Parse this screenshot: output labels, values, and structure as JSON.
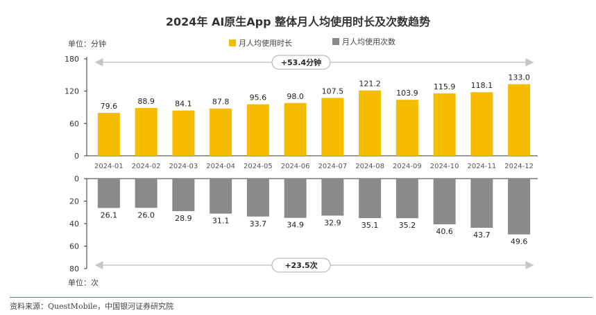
{
  "title": "2024年 AI原生App 整体月人均使用时长及次数趋势",
  "source": "资料来源：QuestMobile，中国银河证券研究院",
  "colors": {
    "duration": "#F5BC00",
    "count": "#8A8A8A",
    "axis": "#333333",
    "arrow": "#c7c7c7"
  },
  "chart_data": {
    "type": "bar",
    "categories": [
      "2024-01",
      "2024-02",
      "2024-03",
      "2024-04",
      "2024-05",
      "2024-06",
      "2024-07",
      "2024-08",
      "2024-09",
      "2024-10",
      "2024-11",
      "2024-12"
    ],
    "top": {
      "unit_label": "单位：分钟",
      "legend": "月人均使用时长",
      "values": [
        79.6,
        88.9,
        84.1,
        87.8,
        95.6,
        98.0,
        107.5,
        121.2,
        103.9,
        115.9,
        118.1,
        133.0
      ],
      "value_labels": [
        "79.6",
        "88.9",
        "84.1",
        "87.8",
        "95.6",
        "98.0",
        "107.5",
        "121.2",
        "103.9",
        "115.9",
        "118.1",
        "133.0"
      ],
      "ylim": [
        0,
        180
      ],
      "ticks": [
        "0",
        "60",
        "120",
        "180"
      ],
      "annotation": "+53.4分钟"
    },
    "bottom": {
      "unit_label": "单位：次",
      "legend": "月人均使用次数",
      "values": [
        26.1,
        26.0,
        28.9,
        31.1,
        33.7,
        34.9,
        32.9,
        35.1,
        35.2,
        40.6,
        43.7,
        49.6
      ],
      "value_labels": [
        "26.1",
        "26.0",
        "28.9",
        "31.1",
        "33.7",
        "34.9",
        "32.9",
        "35.1",
        "35.2",
        "40.6",
        "43.7",
        "49.6"
      ],
      "ylim": [
        0,
        80
      ],
      "ticks": [
        "0",
        "20",
        "40",
        "60",
        "80"
      ],
      "annotation": "+23.5次",
      "inverted": true
    }
  }
}
